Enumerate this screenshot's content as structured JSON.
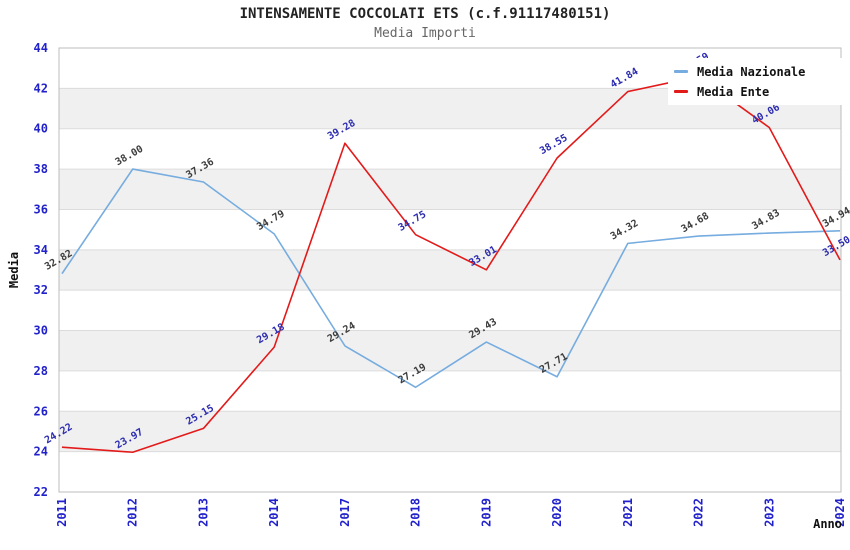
{
  "header": {
    "title": "INTENSAMENTE COCCOLATI ETS (c.f.91117480151)",
    "subtitle": "Media Importi"
  },
  "chart_data": {
    "type": "line",
    "title": "INTENSAMENTE COCCOLATI ETS (c.f.91117480151)",
    "subtitle": "Media Importi",
    "xlabel": "Anno",
    "ylabel": "Media",
    "categories": [
      "2011",
      "2012",
      "2013",
      "2014",
      "2017",
      "2018",
      "2019",
      "2020",
      "2021",
      "2022",
      "2023",
      "2024"
    ],
    "series": [
      {
        "name": "Media Nazionale",
        "color": "#76acdf",
        "label_color": "#3c3c3c",
        "values": [
          32.82,
          38.0,
          37.36,
          34.79,
          29.24,
          27.19,
          29.43,
          27.71,
          34.32,
          34.68,
          34.83,
          34.94
        ]
      },
      {
        "name": "Media Ente",
        "color": "#e31a1a",
        "label_color": "#2b2bb0",
        "values": [
          24.22,
          23.97,
          25.15,
          29.18,
          39.28,
          34.75,
          33.01,
          38.55,
          41.84,
          42.59,
          40.06,
          33.5
        ]
      }
    ],
    "ylim": [
      22,
      44
    ],
    "yticks": [
      22,
      24,
      26,
      28,
      30,
      32,
      34,
      36,
      38,
      40,
      42,
      44
    ],
    "grid": true,
    "band_rows": true,
    "legend_position": "top-right",
    "styles": {
      "tick_label_color": "#2121cc",
      "grid_color": "#dcdcdc",
      "band_color": "#f0f0f0",
      "border_color": "#bdbdbd",
      "axis_title_color": "#111111"
    }
  }
}
